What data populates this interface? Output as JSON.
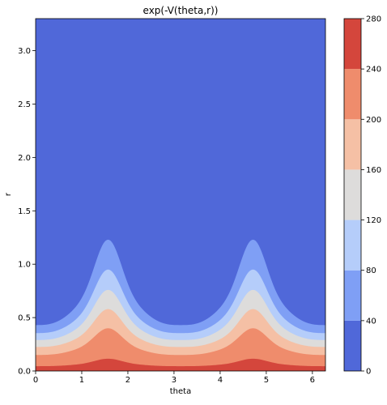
{
  "chart_data": {
    "type": "contour",
    "title": "exp(-V(theta,r))",
    "xlabel": "theta",
    "ylabel": "r",
    "xlim": [
      0,
      6.2832
    ],
    "ylim": [
      0,
      3.3
    ],
    "xticks": [
      0,
      1,
      2,
      3,
      4,
      5,
      6
    ],
    "xtick_labels": [
      "0",
      "1",
      "2",
      "3",
      "4",
      "5",
      "6"
    ],
    "yticks": [
      0.0,
      0.5,
      1.0,
      1.5,
      2.0,
      2.5,
      3.0
    ],
    "ytick_labels": [
      "0.0",
      "0.5",
      "1.0",
      "1.5",
      "2.0",
      "2.5",
      "3.0"
    ],
    "colorbar": {
      "levels": [
        0,
        40,
        80,
        120,
        160,
        200,
        240,
        280
      ],
      "tick_labels": [
        "0",
        "40",
        "80",
        "120",
        "160",
        "200",
        "240",
        "280"
      ],
      "colors": [
        "#5068d9",
        "#7f9ff5",
        "#b5cdfa",
        "#dddcdb",
        "#f5c0a5",
        "#ef8c6c",
        "#d4463c"
      ],
      "colormap": "coolwarm"
    },
    "contour_boundaries": [
      {
        "level": 40,
        "r_at_theta_min": 0.43,
        "r_at_peak": 1.23,
        "peaks_theta": [
          1.5708,
          4.7124
        ]
      },
      {
        "level": 80,
        "r_at_theta_min": 0.355,
        "r_at_peak": 0.95,
        "peaks_theta": [
          1.5708,
          4.7124
        ]
      },
      {
        "level": 120,
        "r_at_theta_min": 0.29,
        "r_at_peak": 0.76,
        "peaks_theta": [
          1.5708,
          4.7124
        ]
      },
      {
        "level": 160,
        "r_at_theta_min": 0.225,
        "r_at_peak": 0.58,
        "peaks_theta": [
          1.5708,
          4.7124
        ]
      },
      {
        "level": 200,
        "r_at_theta_min": 0.15,
        "r_at_peak": 0.4,
        "peaks_theta": [
          1.5708,
          4.7124
        ]
      },
      {
        "level": 240,
        "r_at_theta_min": 0.045,
        "r_at_peak": 0.115,
        "peaks_theta": [
          1.5708,
          4.7124
        ]
      }
    ]
  }
}
